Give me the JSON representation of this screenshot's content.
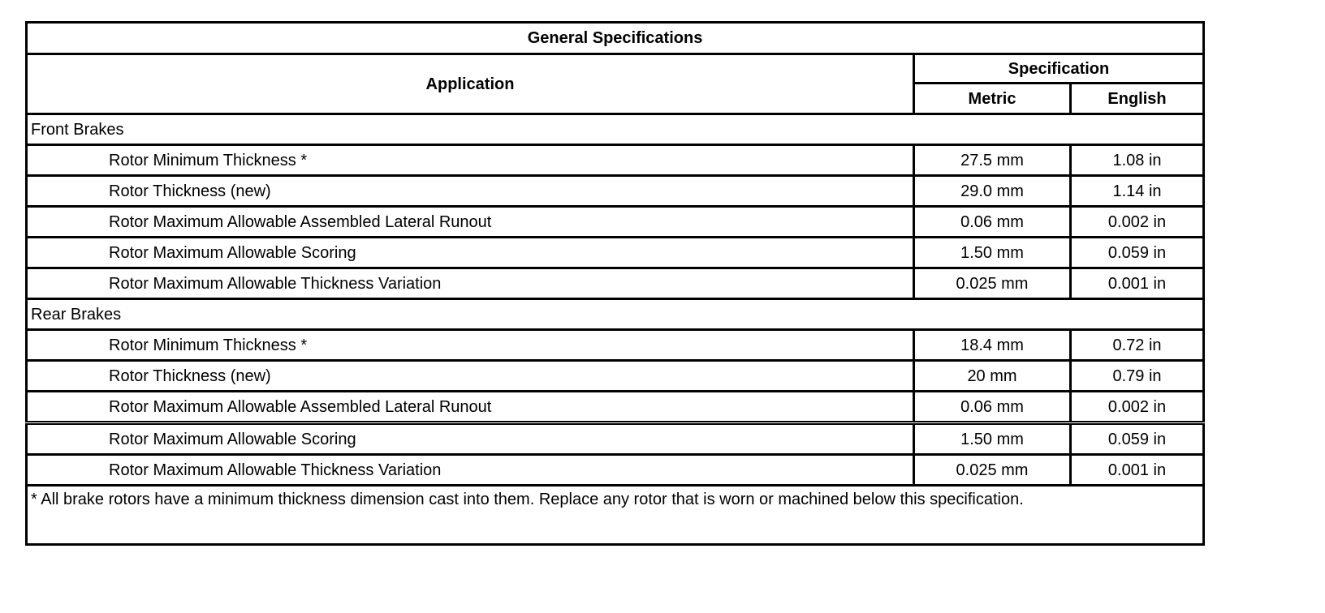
{
  "title": "General Specifications",
  "headers": {
    "application": "Application",
    "specification": "Specification",
    "metric": "Metric",
    "english": "English"
  },
  "groups": [
    {
      "label": "Front Brakes",
      "rows": [
        {
          "application": "Rotor Minimum Thickness *",
          "metric": "27.5 mm",
          "english": "1.08 in"
        },
        {
          "application": "Rotor Thickness (new)",
          "metric": "29.0 mm",
          "english": "1.14 in"
        },
        {
          "application": "Rotor Maximum Allowable Assembled Lateral Runout",
          "metric": "0.06 mm",
          "english": "0.002 in"
        },
        {
          "application": "Rotor Maximum Allowable Scoring",
          "metric": "1.50 mm",
          "english": "0.059 in"
        },
        {
          "application": "Rotor Maximum Allowable Thickness Variation",
          "metric": "0.025 mm",
          "english": "0.001 in"
        }
      ]
    },
    {
      "label": "Rear Brakes",
      "rows": [
        {
          "application": "Rotor Minimum Thickness *",
          "metric": "18.4 mm",
          "english": "0.72 in"
        },
        {
          "application": "Rotor Thickness (new)",
          "metric": "20 mm",
          "english": "0.79 in"
        },
        {
          "application": "Rotor Maximum Allowable Assembled Lateral Runout",
          "metric": "0.06 mm",
          "english": "0.002 in"
        },
        {
          "application": "Rotor Maximum Allowable Scoring",
          "metric": "1.50 mm",
          "english": "0.059 in"
        },
        {
          "application": "Rotor Maximum Allowable Thickness Variation",
          "metric": "0.025 mm",
          "english": "0.001 in"
        }
      ]
    }
  ],
  "footnote": "* All brake rotors have a minimum thickness dimension cast into them. Replace any rotor that is worn or machined below this specification."
}
